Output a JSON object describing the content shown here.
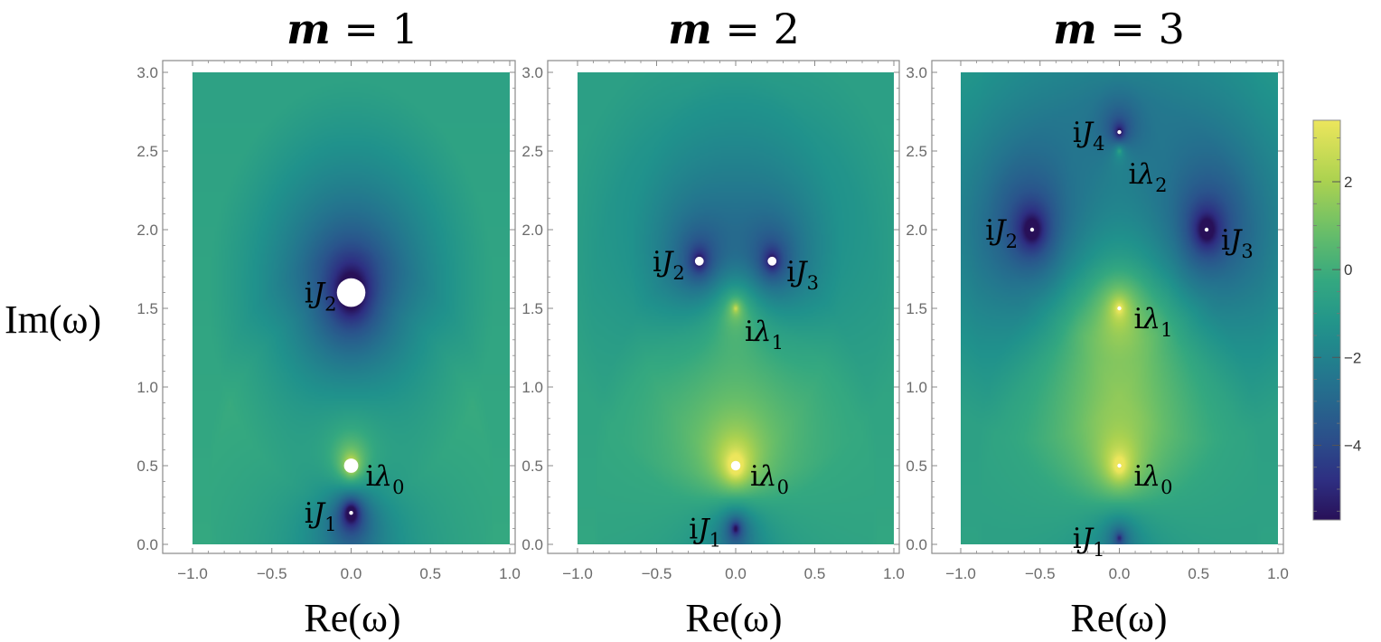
{
  "figure": {
    "ylabel": "Im(ω)",
    "xlabel": "Re(ω)"
  },
  "colorbar": {
    "range": [
      -5.7,
      3.4
    ],
    "ticks": [
      {
        "value": 2,
        "label": "2"
      },
      {
        "value": 0,
        "label": "0"
      },
      {
        "value": -2,
        "label": "−2"
      },
      {
        "value": -4,
        "label": "−4"
      }
    ],
    "colormap": "viridis"
  },
  "chart_data": [
    {
      "type": "heatmap",
      "title": "m = 1",
      "title_var": "m",
      "title_rest": " = 1",
      "xlabel": "Re(ω)",
      "xlim": [
        -1.0,
        1.0
      ],
      "ylim": [
        0.0,
        3.0
      ],
      "xticks": [
        "−1.0",
        "−0.5",
        "0.0",
        "0.5",
        "1.0"
      ],
      "yticks": [
        "0.0",
        "0.5",
        "1.0",
        "1.5",
        "2.0",
        "2.5",
        "3.0"
      ],
      "background_value": -0.6,
      "features": [
        {
          "kind": "zero",
          "x": 0.0,
          "y": 1.6,
          "label_base": "iJ",
          "label_sub": "2",
          "label_side": "left",
          "strength": 4.2,
          "hole": 0.09
        },
        {
          "kind": "pole",
          "x": 0.0,
          "y": 0.5,
          "label_base": "iλ",
          "label_sub": "0",
          "label_side": "right",
          "strength": 3.6,
          "hole": 0.045
        },
        {
          "kind": "zero",
          "x": 0.0,
          "y": 0.2,
          "label_base": "iJ",
          "label_sub": "1",
          "label_side": "left",
          "strength": 4.6,
          "hole": 0.012
        }
      ]
    },
    {
      "type": "heatmap",
      "title": "m = 2",
      "title_var": "m",
      "title_rest": " = 2",
      "xlabel": "Re(ω)",
      "xlim": [
        -1.0,
        1.0
      ],
      "ylim": [
        0.0,
        3.0
      ],
      "xticks": [
        "−1.0",
        "−0.5",
        "0.0",
        "0.5",
        "1.0"
      ],
      "yticks": [
        "0.0",
        "0.5",
        "1.0",
        "1.5",
        "2.0",
        "2.5",
        "3.0"
      ],
      "background_value": -0.7,
      "features": [
        {
          "kind": "zero",
          "x": -0.23,
          "y": 1.8,
          "label_base": "iJ",
          "label_sub": "2",
          "label_side": "left",
          "strength": 2.6,
          "hole": 0.028
        },
        {
          "kind": "zero",
          "x": 0.23,
          "y": 1.8,
          "label_base": "iJ",
          "label_sub": "3",
          "label_side": "right",
          "strength": 2.6,
          "hole": 0.028
        },
        {
          "kind": "pole",
          "x": 0.0,
          "y": 1.5,
          "label_base": "iλ",
          "label_sub": "1",
          "label_side": "below-right",
          "strength": 2.2,
          "hole": 0.0
        },
        {
          "kind": "pole",
          "x": 0.0,
          "y": 0.5,
          "label_base": "iλ",
          "label_sub": "0",
          "label_side": "right",
          "strength": 3.4,
          "hole": 0.03
        },
        {
          "kind": "zero",
          "x": 0.0,
          "y": 0.1,
          "label_base": "iJ",
          "label_sub": "1",
          "label_side": "left",
          "strength": 3.2,
          "hole": 0.0
        }
      ]
    },
    {
      "type": "heatmap",
      "title": "m = 3",
      "title_var": "m",
      "title_rest": " = 3",
      "xlabel": "Re(ω)",
      "xlim": [
        -1.0,
        1.0
      ],
      "ylim": [
        0.0,
        3.0
      ],
      "xticks": [
        "−1.0",
        "−0.5",
        "0.0",
        "0.5",
        "1.0"
      ],
      "yticks": [
        "0.0",
        "0.5",
        "1.0",
        "1.5",
        "2.0",
        "2.5",
        "3.0"
      ],
      "background_value": -0.9,
      "features": [
        {
          "kind": "zero",
          "x": 0.0,
          "y": 2.62,
          "label_base": "iJ",
          "label_sub": "4",
          "label_side": "left",
          "strength": 2.8,
          "hole": 0.008
        },
        {
          "kind": "pole",
          "x": 0.0,
          "y": 2.5,
          "label_base": "iλ",
          "label_sub": "2",
          "label_side": "below-right",
          "strength": 1.8,
          "hole": 0.0
        },
        {
          "kind": "zero",
          "x": -0.55,
          "y": 2.0,
          "label_base": "iJ",
          "label_sub": "2",
          "label_side": "left",
          "strength": 3.2,
          "hole": 0.008
        },
        {
          "kind": "zero",
          "x": 0.55,
          "y": 2.0,
          "label_base": "iJ",
          "label_sub": "3",
          "label_side": "right",
          "strength": 3.2,
          "hole": 0.008
        },
        {
          "kind": "pole",
          "x": 0.0,
          "y": 1.5,
          "label_base": "iλ",
          "label_sub": "1",
          "label_side": "right",
          "strength": 2.2,
          "hole": 0.006
        },
        {
          "kind": "pole",
          "x": 0.0,
          "y": 0.5,
          "label_base": "iλ",
          "label_sub": "0",
          "label_side": "right",
          "strength": 2.8,
          "hole": 0.008
        },
        {
          "kind": "zero",
          "x": 0.0,
          "y": 0.04,
          "label_base": "iJ",
          "label_sub": "1",
          "label_side": "left",
          "strength": 2.4,
          "hole": 0.0
        }
      ]
    }
  ]
}
